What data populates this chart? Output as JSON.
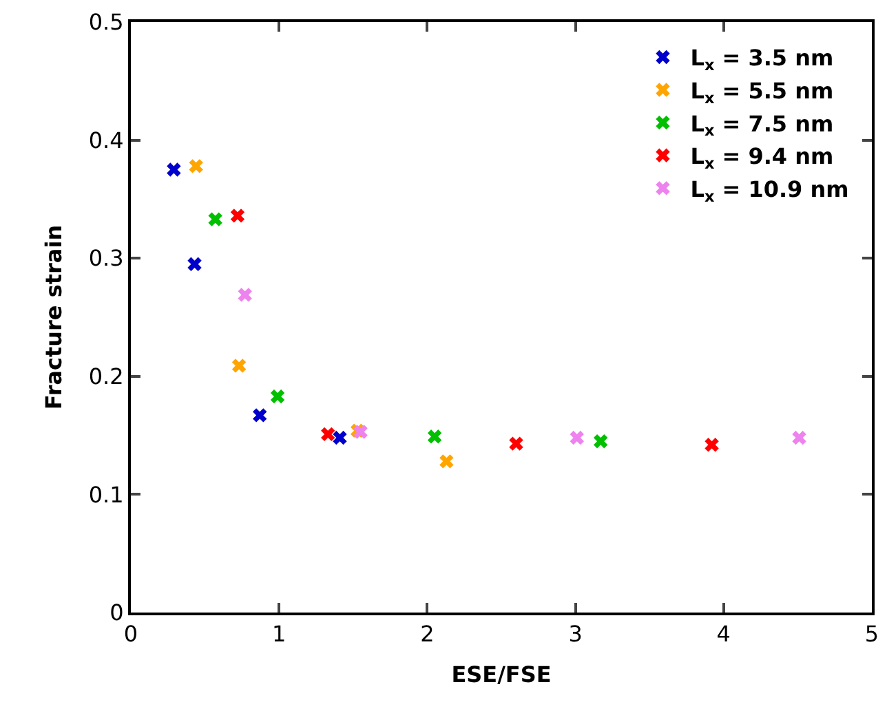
{
  "chart_data": {
    "type": "scatter",
    "xlabel": "ESE/FSE",
    "ylabel": "Fracture strain",
    "xlim": [
      0,
      5
    ],
    "xticks": [
      0,
      1,
      2,
      3,
      4,
      5
    ],
    "ylim": [
      0,
      0.5
    ],
    "yticks": [
      0,
      0.1,
      0.2,
      0.3,
      0.4,
      0.5
    ],
    "grid": false,
    "legend": "top right",
    "marker": "cross",
    "series": [
      {
        "name": "L$_{x}$ = 3.5 nm",
        "color": "#0000cc",
        "x": [
          0.29,
          0.43,
          0.87,
          1.41
        ],
        "values": [
          0.375,
          0.295,
          0.167,
          0.148
        ]
      },
      {
        "name": "L$_{x}$ = 5.5 nm",
        "color": "#ffa500",
        "x": [
          0.44,
          0.73,
          1.53,
          2.13
        ],
        "values": [
          0.378,
          0.209,
          0.154,
          0.128
        ]
      },
      {
        "name": "L$_{x}$ = 7.5 nm",
        "color": "#00c000",
        "x": [
          0.57,
          0.99,
          2.05,
          3.17
        ],
        "values": [
          0.333,
          0.183,
          0.149,
          0.145
        ]
      },
      {
        "name": "L$_{x}$ = 9.4 nm",
        "color": "#ff0000",
        "x": [
          0.72,
          1.33,
          2.6,
          3.92
        ],
        "values": [
          0.336,
          0.151,
          0.143,
          0.142
        ]
      },
      {
        "name": "L$_{x}$ = 10.9 nm",
        "color": "#ee82ee",
        "x": [
          0.77,
          1.55,
          3.01,
          4.51
        ],
        "values": [
          0.269,
          0.153,
          0.148,
          0.148
        ]
      }
    ]
  }
}
